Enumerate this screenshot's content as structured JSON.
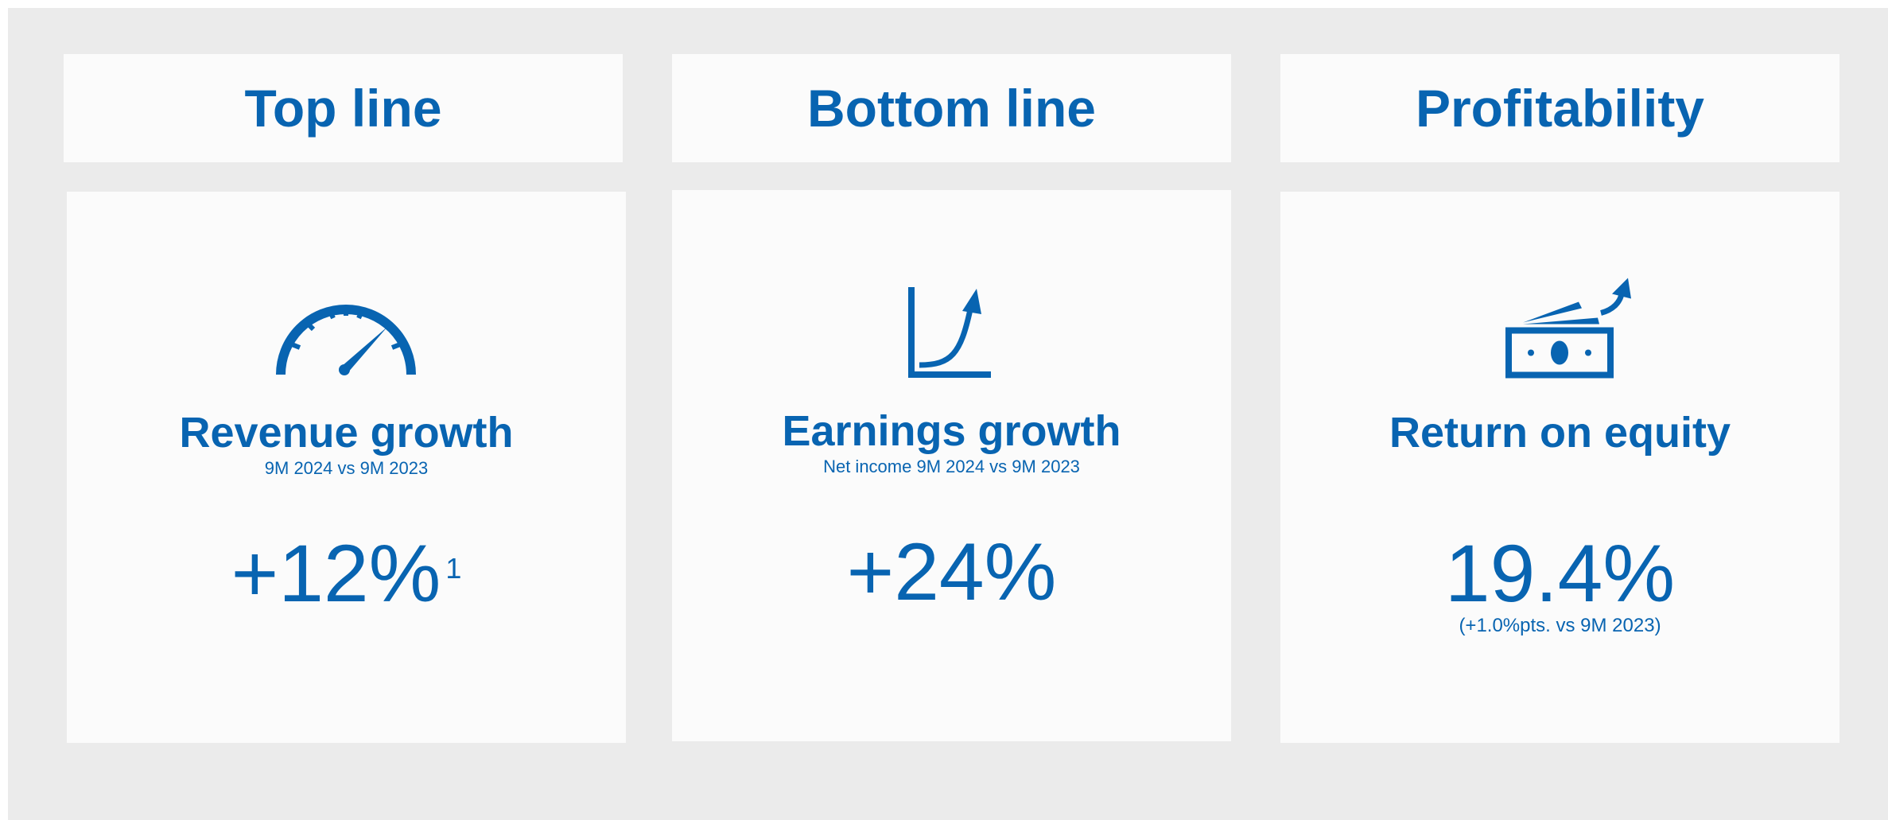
{
  "panels": [
    {
      "header": "Top line",
      "title": "Revenue growth",
      "subtitle": "9M 2024 vs 9M 2023",
      "value": "+12%",
      "footnote": "1"
    },
    {
      "header": "Bottom line",
      "title": "Earnings growth",
      "subtitle": "Net income 9M 2024 vs 9M 2023",
      "value": "+24%"
    },
    {
      "header": "Profitability",
      "title": "Return on equity",
      "value": "19.4%",
      "note": "(+1.0%pts. vs 9M 2023)"
    }
  ]
}
